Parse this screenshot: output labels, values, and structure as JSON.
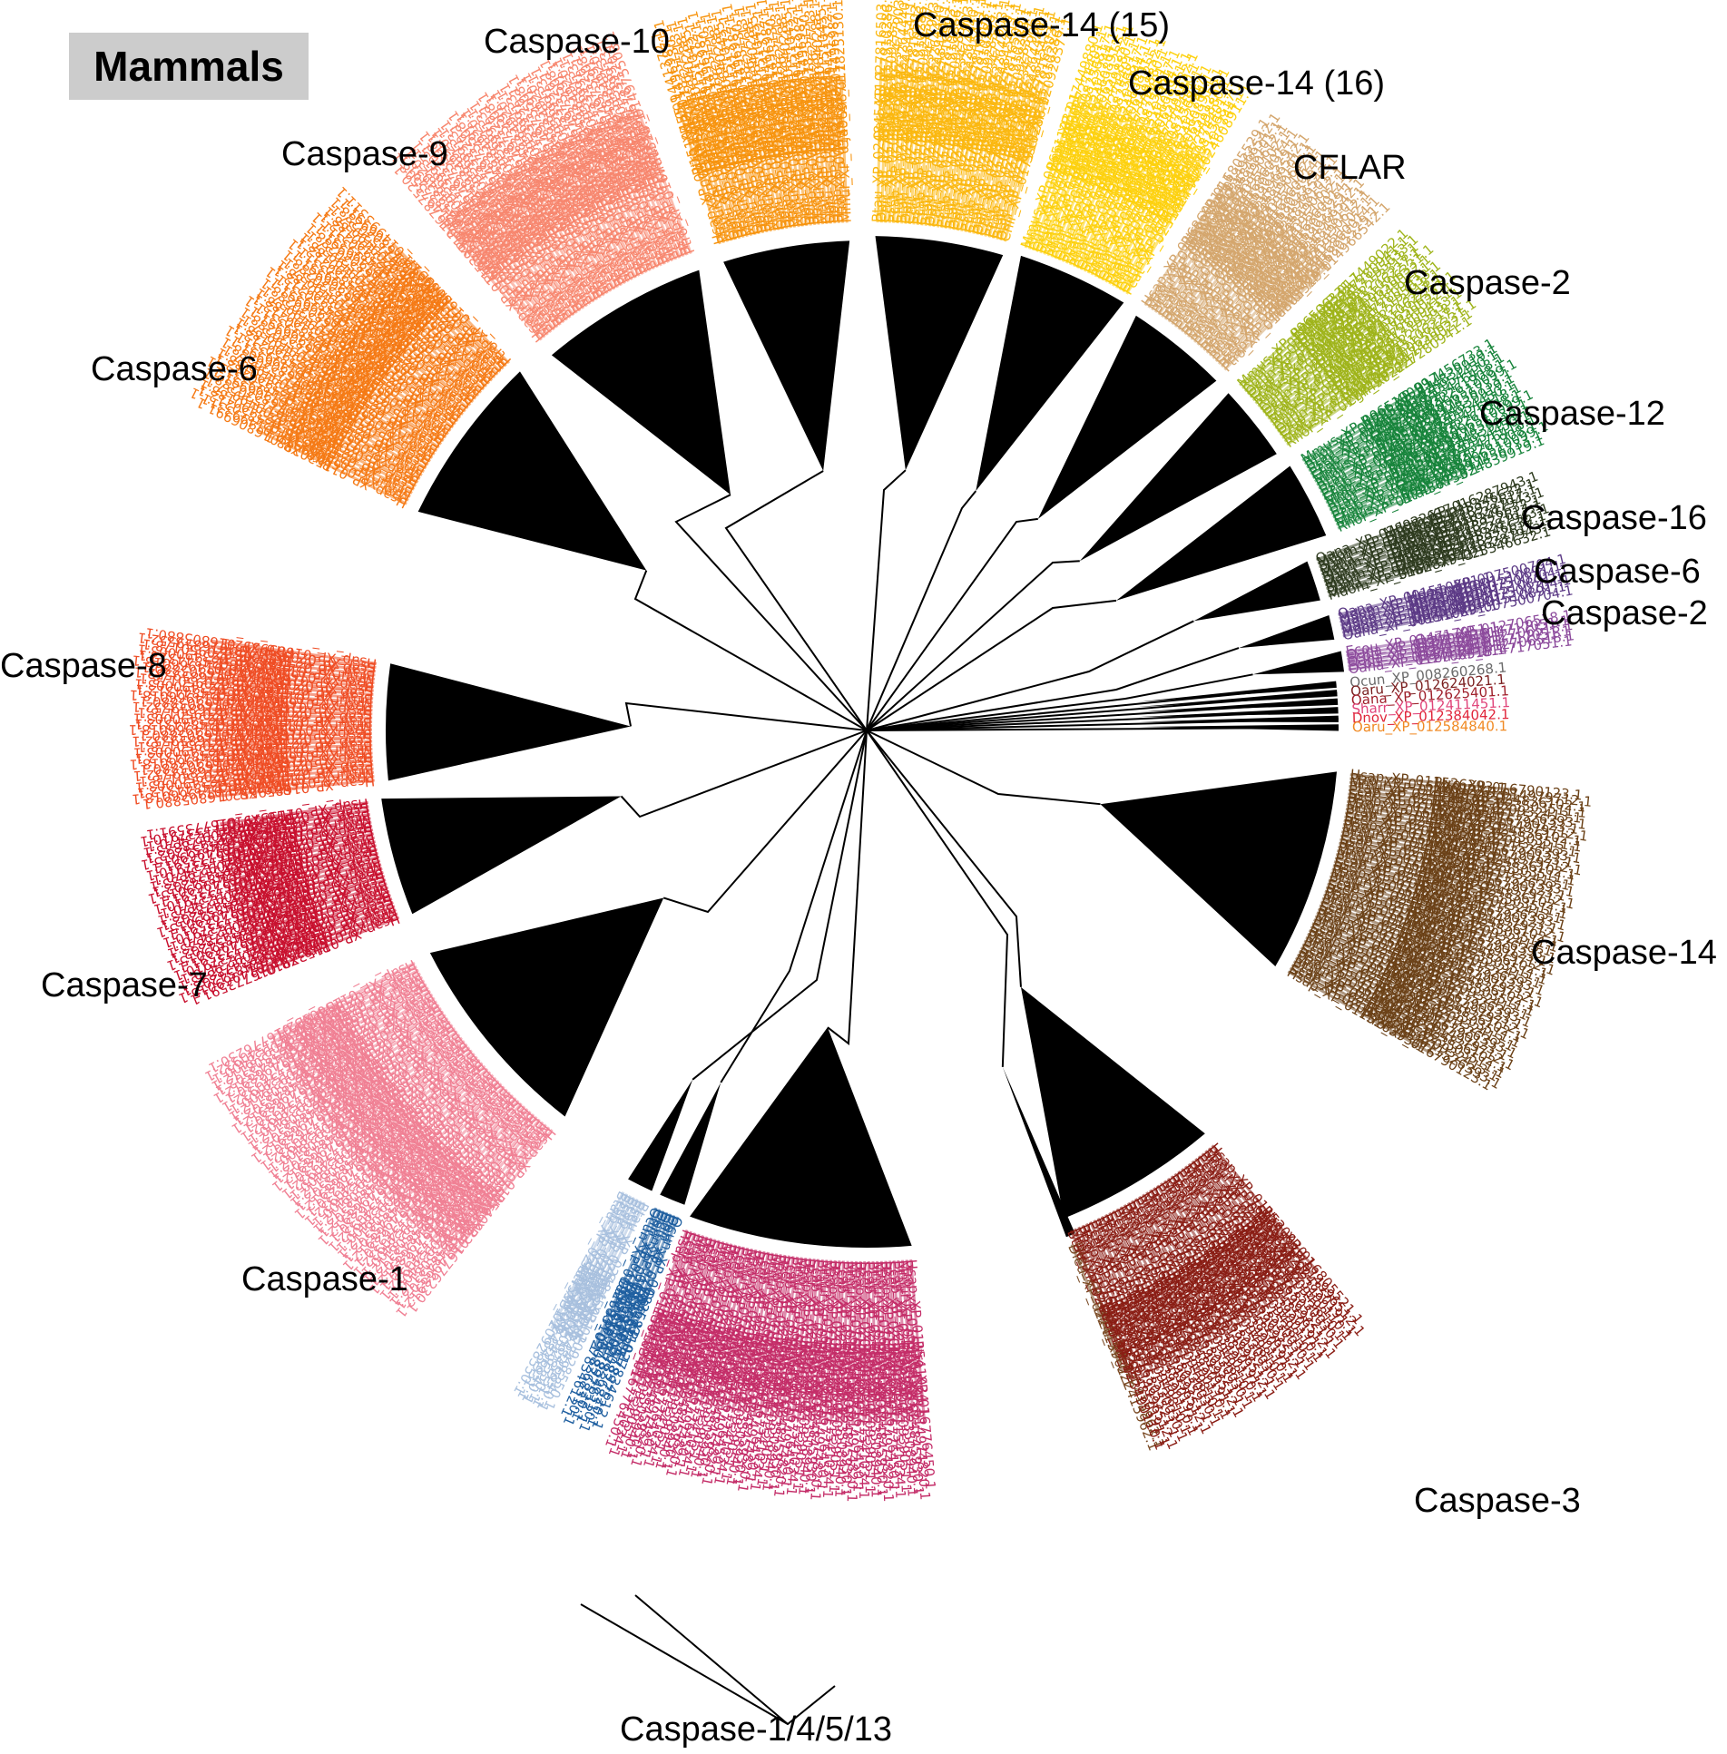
{
  "title": "Mammals",
  "clades": [
    {
      "id": "c10",
      "label": "Caspase-10",
      "color": "#f7940f",
      "tips": [
        "Hsap_XP_011510455.1",
        "Ptro_XP_009441372.1",
        "Mmul_XP_014969871.1",
        "Cjac_XP_017825130.1",
        "Oaru_XP_012627713.1",
        "Bbis_XP_010840288.1"
      ]
    },
    {
      "id": "c1415",
      "label": "Caspase-14 (15)",
      "color": "#fbb810",
      "tips": [
        "Btau_XP_024845411.1",
        "Oari_XP_027816503.1",
        "Chir_XP_017910286.1",
        "Sscr_XP_020928377.1",
        "Ecab_XP_023477903.1",
        "Clup_XP_022264440.1"
      ]
    },
    {
      "id": "c1416",
      "label": "Caspase-14 (16)",
      "color": "#fdd10f",
      "tips": [
        "Mmus_XP_006511232.1",
        "Rnor_XP_017449880.1",
        "Cgri_XP_027274401.1",
        "Ocun_XP_008256817.1",
        "Fcat_XP_023102744.1",
        "Pvam_XP_024608911.1"
      ]
    },
    {
      "id": "cfl",
      "label": "CFLAR",
      "color": "#d4a66d",
      "tips": [
        "Hsap_XP_016860014.1",
        "Ptro_XP_016805529.1",
        "Mmul_XP_014966542.1",
        "Btau_XP_024848101.1",
        "Ecab_XP_023490612.1",
        "Sscr_XP_020951102.1"
      ]
    },
    {
      "id": "c2a",
      "label": "Caspase-2",
      "color": "#9fb41a",
      "tips": [
        "Mmus_XP_006506331.1",
        "Rnor_XP_017449022.1",
        "Cgri_XP_027280941.1",
        "Ocun_XP_017195633.1",
        "Clup_XP_022273318.1",
        "Fcat_XP_023106227.1"
      ]
    },
    {
      "id": "c12",
      "label": "Caspase-12",
      "color": "#17843b",
      "tips": [
        "Mmus_XP_006510099.1",
        "Rnor_XP_017456733.1",
        "Btau_XP_024839919.1",
        "Sscr_XP_020954450.1",
        "Ecab_XP_023476418.1",
        "Clup_XP_022261908.1"
      ]
    },
    {
      "id": "c16",
      "label": "Caspase-16",
      "color": "#2d3a1e",
      "tips": [
        "Oana_XP_028922617.1",
        "Mdom_XP_016287943.1",
        "Sharr_XP_023346632.1"
      ]
    },
    {
      "id": "c6b",
      "label": "Caspase-6",
      "color": "#5c3a86",
      "tips": [
        "Oana_XP_001510891.1",
        "Mdom_XP_007500704.1"
      ]
    },
    {
      "id": "c2b",
      "label": "Caspase-2",
      "color": "#8c4a9c",
      "tips": [
        "Ecou_XP_014717051.1",
        "Oana_XP_012706518.1"
      ]
    },
    {
      "id": "c6",
      "label": "Caspase-6",
      "color": "#f57a15",
      "tips": [
        "Hsap_XP_011530288.1",
        "Ptro_XP_016806991.1",
        "Mmul_XP_014993311.1",
        "Btau_XP_024850212.1",
        "Ecab_XP_023490188.1",
        "Sscr_XP_020949937.1"
      ]
    },
    {
      "id": "c9",
      "label": "Caspase-9",
      "color": "#f7876f",
      "tips": [
        "Hsap_XP_011539913.1",
        "Ptro_XP_016787520.1",
        "Mmul_XP_014975508.1",
        "Btau_XP_024833491.1",
        "Ecab_XP_023484920.1",
        "Sscr_XP_020936813.1"
      ]
    },
    {
      "id": "c8",
      "label": "Caspase-8",
      "color": "#ef4d24",
      "tips": [
        "Hsap_XP_016859552.1",
        "Ptro_XP_016805880.1",
        "Mmul_XP_014966018.1",
        "Btau_XP_024844312.1",
        "Ecab_XP_023490003.1",
        "Sscr_XP_020950178.1"
      ]
    },
    {
      "id": "c7",
      "label": "Caspase-7",
      "color": "#c8102e",
      "tips": [
        "Hsap_XP_011537910.1",
        "Ptro_XP_016773591.1",
        "Mmul_XP_014969015.1",
        "Btau_XP_024854202.1",
        "Ecab_XP_023478833.1",
        "Sscr_XP_020923470.1"
      ]
    },
    {
      "id": "c1",
      "label": "Caspase-1",
      "color": "#f08094",
      "tips": [
        "Hsap_XP_011540932.1",
        "Ptro_XP_016776230.1",
        "Mmul_XP_014968912.1",
        "Btau_XP_024845502.1",
        "Ecab_XP_023508112.1",
        "Sscr_XP_020938400.1"
      ]
    },
    {
      "id": "c1451",
      "label": "",
      "color": "#1f5fa0",
      "tips": [
        "Ocun_XP_008268310.1",
        "Oari_XP_027834612.1",
        "Chir_XP_017897520.1"
      ]
    },
    {
      "id": "c1452",
      "label": "",
      "color": "#a8c0de",
      "tips": [
        "Btau_XP_024845931.1",
        "Sscr_XP_020928550.1",
        "Ecab_XP_023496840.1"
      ]
    },
    {
      "id": "c1453",
      "label": "",
      "color": "#c42d68",
      "tips": [
        "Hsap_XP_011541034.1",
        "Ptro_XP_016776450.1",
        "Mmul_XP_014974820.1",
        "Btau_XP_024845930.1",
        "Ecab_XP_023508940.1",
        "Sscr_XP_020939051.1"
      ]
    },
    {
      "id": "csing",
      "label": "",
      "color": "#7a4a24",
      "tips": [
        "Dleu_XP_022415962.1"
      ]
    },
    {
      "id": "c3",
      "label": "Caspase-3",
      "color": "#8a1d14",
      "tips": [
        "Hsap_XP_011530030.1",
        "Ptro_XP_016805521.1",
        "Mmul_XP_014996512.1",
        "Btau_XP_024850191.1",
        "Ecab_XP_023490110.1",
        "Sscr_XP_020949810.1"
      ]
    },
    {
      "id": "c14",
      "label": "Caspase-14",
      "color": "#6b4117",
      "tips": [
        "Hsap_XP_011526393.1",
        "Ptro_XP_016790123.1",
        "Mmul_XP_014979712.1",
        "Btau_XP_024836102.1",
        "Ecab_XP_023503511.1",
        "Sscr_XP_020932413.1"
      ]
    }
  ],
  "small_clades": [
    {
      "color": "#6b6b6b",
      "tip": "Ocun_XP_008260268.1"
    },
    {
      "color": "#7a1f1f",
      "tip": "Oaru_XP_012624021.1"
    },
    {
      "color": "#9e1f2a",
      "tip": "Oana_XP_012625401.1"
    },
    {
      "color": "#e0457a",
      "tip": "Sharr_XP_012411451.1"
    },
    {
      "color": "#e0253a",
      "tip": "Dnov_XP_012384042.1"
    },
    {
      "color": "#f08a24",
      "tip": "Oaru_XP_012584840.1"
    }
  ],
  "bottom_label": "Caspase-1/4/5/13"
}
